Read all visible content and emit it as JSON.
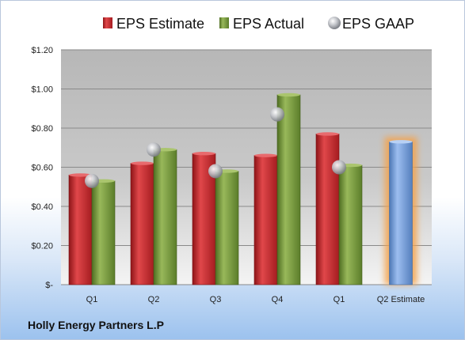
{
  "company_name": "Holly Energy Partners L.P",
  "colors": {
    "estimate": "#c0272b",
    "actual": "#75963a",
    "gaap": "#b9bcc2",
    "forecast": "#6f9ad6",
    "forecast_glow": "#f5a24a"
  },
  "chart_data": {
    "type": "bar",
    "categories": [
      "Q1",
      "Q2",
      "Q3",
      "Q4",
      "Q1",
      "Q2 Estimate"
    ],
    "series": [
      {
        "name": "EPS Estimate",
        "values": [
          0.56,
          0.62,
          0.67,
          0.66,
          0.77,
          null
        ]
      },
      {
        "name": "EPS Actual",
        "values": [
          0.53,
          0.69,
          0.58,
          0.97,
          0.61,
          null
        ]
      },
      {
        "name": "EPS GAAP",
        "values": [
          0.53,
          0.69,
          0.58,
          0.87,
          0.6,
          null
        ]
      }
    ],
    "forecast": {
      "category": "Q2 Estimate",
      "value": 0.73
    },
    "ylim": [
      0,
      1.2
    ],
    "yticks": [
      0,
      0.2,
      0.4,
      0.6,
      0.8,
      1.0,
      1.2
    ],
    "ytick_labels": [
      "$-",
      "$0.20",
      "$0.40",
      "$0.60",
      "$0.80",
      "$1.00",
      "$1.20"
    ],
    "grid": true,
    "legend_position": "top"
  }
}
